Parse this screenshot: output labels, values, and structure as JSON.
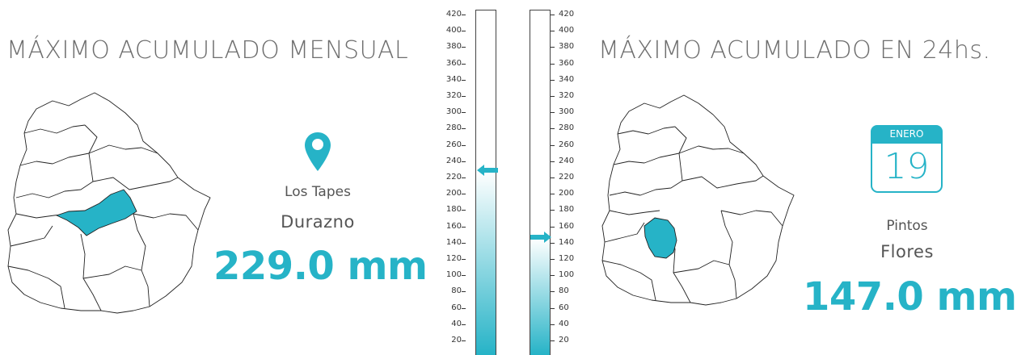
{
  "left": {
    "title": "MÁXIMO ACUMULADO MENSUAL",
    "station": "Los Tapes",
    "department": "Durazno",
    "value_text": "229.0 mm",
    "value": 229.0,
    "icon": "map-pin-icon"
  },
  "right": {
    "title": "MÁXIMO ACUMULADO EN 24hs.",
    "calendar": {
      "month": "ENERO",
      "day": "19"
    },
    "station": "Pintos",
    "department": "Flores",
    "value_text": "147.0 mm",
    "value": 147.0,
    "icon": "calendar-icon"
  },
  "scale": {
    "ticks": [
      "420",
      "400",
      "380",
      "360",
      "340",
      "320",
      "300",
      "280",
      "260",
      "240",
      "220",
      "200",
      "180",
      "160",
      "140",
      "120",
      "100",
      "80",
      "60",
      "40",
      "20"
    ],
    "max": 420
  },
  "colors": {
    "accent": "#26b3c7",
    "text": "#5a5a5a"
  }
}
